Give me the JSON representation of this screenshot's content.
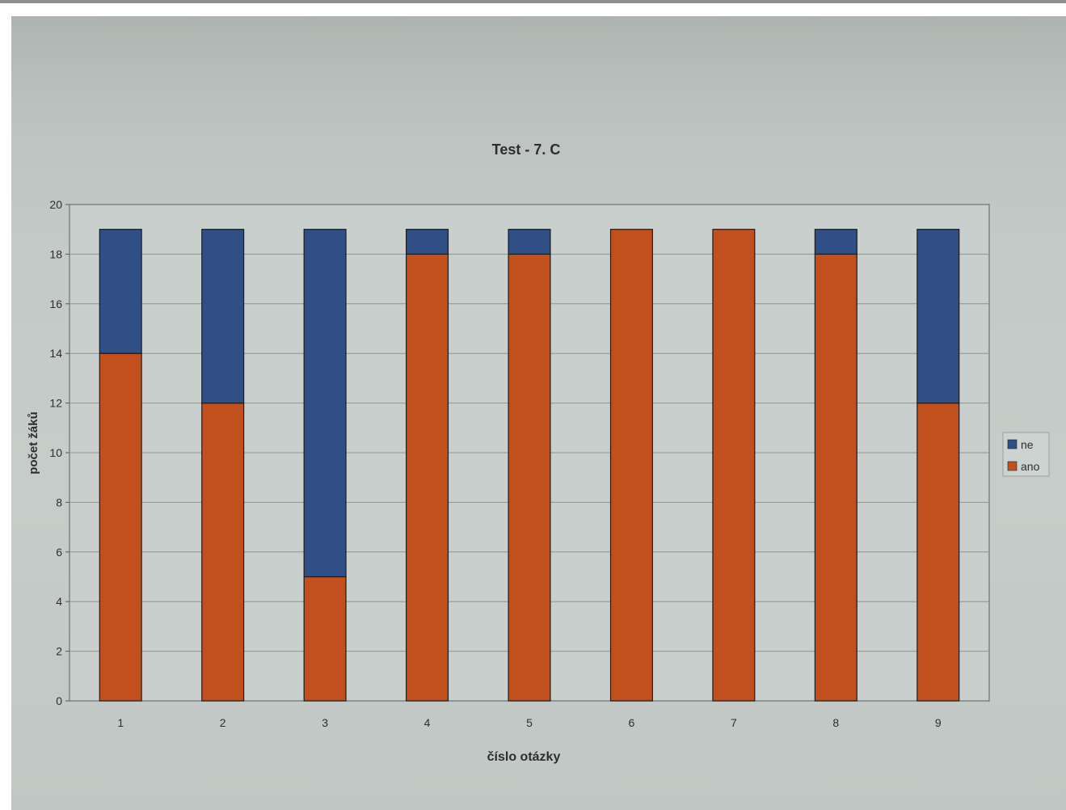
{
  "chart_data": {
    "type": "bar",
    "stacked": true,
    "title": "Test - 7. C",
    "xlabel": "číslo otázky",
    "ylabel": "počet žáků",
    "categories": [
      "1",
      "2",
      "3",
      "4",
      "5",
      "6",
      "7",
      "8",
      "9"
    ],
    "series": [
      {
        "name": "ano",
        "color": "#c2501f",
        "values": [
          14,
          12,
          5,
          18,
          18,
          19,
          19,
          18,
          12
        ]
      },
      {
        "name": "ne",
        "color": "#2f4f86",
        "values": [
          5,
          7,
          14,
          1,
          1,
          0,
          0,
          1,
          7
        ]
      }
    ],
    "ylim": [
      0,
      20
    ],
    "yticks": [
      0,
      2,
      4,
      6,
      8,
      10,
      12,
      14,
      16,
      18,
      20
    ],
    "grid": true,
    "legend": {
      "position": "right",
      "entries": [
        "ne",
        "ano"
      ]
    }
  }
}
